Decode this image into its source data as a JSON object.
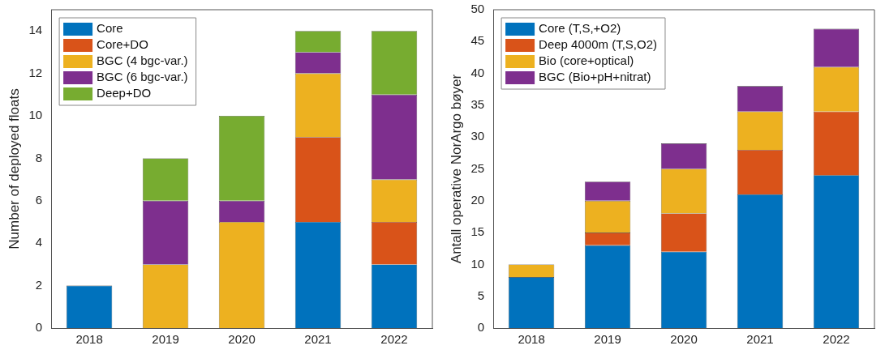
{
  "chart_data": [
    {
      "type": "bar",
      "stacked": true,
      "ylabel": "Number of deployed floats",
      "categories": [
        "2018",
        "2019",
        "2020",
        "2021",
        "2022"
      ],
      "ylim": [
        0,
        15
      ],
      "yticks": [
        0,
        2,
        4,
        6,
        8,
        10,
        12,
        14
      ],
      "grid": false,
      "legend": "top left",
      "series": [
        {
          "name": "Core",
          "color": "#0072bd",
          "values": [
            2,
            0,
            0,
            5,
            3
          ]
        },
        {
          "name": "Core+DO",
          "color": "#d95319",
          "values": [
            0,
            0,
            0,
            4,
            2
          ]
        },
        {
          "name": "BGC (4 bgc-var.)",
          "color": "#edb120",
          "values": [
            0,
            3,
            5,
            3,
            2
          ]
        },
        {
          "name": "BGC (6 bgc-var.)",
          "color": "#7e2f8e",
          "values": [
            0,
            3,
            1,
            1,
            4
          ]
        },
        {
          "name": "Deep+DO",
          "color": "#77ac30",
          "values": [
            0,
            2,
            4,
            1,
            3
          ]
        }
      ]
    },
    {
      "type": "bar",
      "stacked": true,
      "ylabel": "Antall operative NorArgo bøyer",
      "categories": [
        "2018",
        "2019",
        "2020",
        "2021",
        "2022"
      ],
      "ylim": [
        0,
        50
      ],
      "yticks": [
        0,
        5,
        10,
        15,
        20,
        25,
        30,
        35,
        40,
        45,
        50
      ],
      "grid": false,
      "legend": "top left",
      "series": [
        {
          "name": "Core (T,S,+O2)",
          "color": "#0072bd",
          "values": [
            8,
            13,
            12,
            21,
            24
          ]
        },
        {
          "name": "Deep 4000m (T,S,O2)",
          "color": "#d95319",
          "values": [
            0,
            2,
            6,
            7,
            10
          ]
        },
        {
          "name": "Bio (core+optical)",
          "color": "#edb120",
          "values": [
            2,
            5,
            7,
            6,
            7
          ]
        },
        {
          "name": "BGC (Bio+pH+nitrat)",
          "color": "#7e2f8e",
          "values": [
            0,
            3,
            4,
            4,
            6
          ]
        }
      ]
    }
  ]
}
